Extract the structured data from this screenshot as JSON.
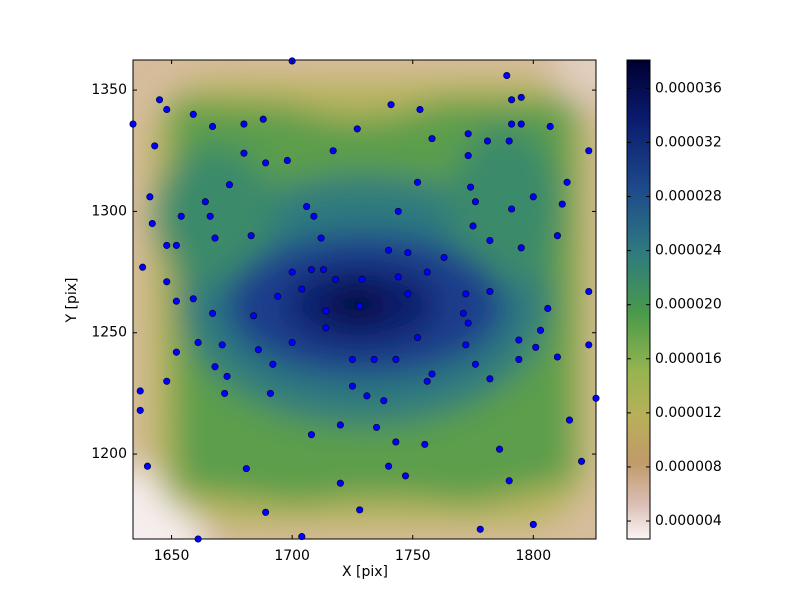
{
  "chart_data": {
    "type": "scatter",
    "x_label": "X [pix]",
    "y_label": "Y [pix]",
    "xlim": [
      1634,
      1826
    ],
    "ylim": [
      1165,
      1362.4
    ],
    "xticks": [
      1650,
      1700,
      1750,
      1800
    ],
    "yticks": [
      1200,
      1250,
      1300,
      1350
    ],
    "color": "#0000ff",
    "x": [
      1634,
      1645,
      1648,
      1659,
      1643,
      1667,
      1680,
      1688,
      1680,
      1689,
      1698,
      1674,
      1641,
      1664,
      1654,
      1666,
      1642,
      1668,
      1683,
      1648,
      1652,
      1706,
      1709,
      1712,
      1638,
      1648,
      1652,
      1659,
      1667,
      1700,
      1708,
      1713,
      1704,
      1694,
      1684,
      1718,
      1729,
      1728,
      1714,
      1714,
      1671,
      1661,
      1652,
      1686,
      1692,
      1668,
      1673,
      1648,
      1700,
      1672,
      1691,
      1637,
      1637,
      1725,
      1725,
      1731,
      1738,
      1734,
      1743,
      1720,
      1735,
      1708,
      1743,
      1755,
      1740,
      1747,
      1640,
      1681,
      1720,
      1689,
      1728,
      1661,
      1704,
      1700,
      1727,
      1717,
      1741,
      1753,
      1758,
      1752,
      1744,
      1740,
      1748,
      1763,
      1756,
      1744,
      1748,
      1752,
      1756,
      1758,
      1773,
      1781,
      1773,
      1774,
      1776,
      1775,
      1782,
      1772,
      1782,
      1771,
      1773,
      1772,
      1776,
      1782,
      1789,
      1791,
      1795,
      1791,
      1795,
      1790,
      1807,
      1791,
      1800,
      1795,
      1814,
      1812,
      1810,
      1806,
      1803,
      1794,
      1801,
      1794,
      1810,
      1823,
      1823,
      1823,
      1826,
      1815,
      1820,
      1786,
      1790,
      1778,
      1800
    ],
    "values": [
      1336,
      1346,
      1342,
      1340,
      1327,
      1335,
      1336,
      1338,
      1324,
      1320,
      1321,
      1311,
      1306,
      1304,
      1298,
      1298,
      1295,
      1289,
      1290,
      1286,
      1286,
      1302,
      1298,
      1289,
      1277,
      1271,
      1263,
      1264,
      1258,
      1275,
      1276,
      1276,
      1268,
      1265,
      1257,
      1272,
      1272,
      1261,
      1259,
      1252,
      1245,
      1246,
      1242,
      1243,
      1237,
      1236,
      1232,
      1230,
      1246,
      1225,
      1225,
      1226,
      1218,
      1239,
      1228,
      1224,
      1222,
      1239,
      1239,
      1212,
      1211,
      1208,
      1205,
      1204,
      1195,
      1191,
      1195,
      1194,
      1188,
      1176,
      1177,
      1165,
      1166,
      1362,
      1334,
      1325,
      1344,
      1342,
      1330,
      1312,
      1300,
      1284,
      1283,
      1281,
      1275,
      1273,
      1266,
      1248,
      1230,
      1233,
      1332,
      1329,
      1323,
      1310,
      1304,
      1294,
      1288,
      1266,
      1267,
      1258,
      1254,
      1245,
      1237,
      1231,
      1356,
      1346,
      1347,
      1336,
      1336,
      1329,
      1335,
      1301,
      1306,
      1285,
      1312,
      1303,
      1290,
      1260,
      1251,
      1247,
      1244,
      1239,
      1240,
      1325,
      1267,
      1245,
      1223,
      1214,
      1197,
      1202,
      1189,
      1169,
      1171
    ],
    "colorbar": {
      "lim": [
        2.67e-06,
        3.81e-05
      ],
      "ticks": [
        4e-06,
        8e-06,
        1.2e-05,
        1.6e-05,
        {
          "value": 2e-05,
          "label": "0.000020"
        },
        2.4e-05,
        2.8e-05,
        3.2e-05,
        3.6e-05
      ]
    }
  }
}
